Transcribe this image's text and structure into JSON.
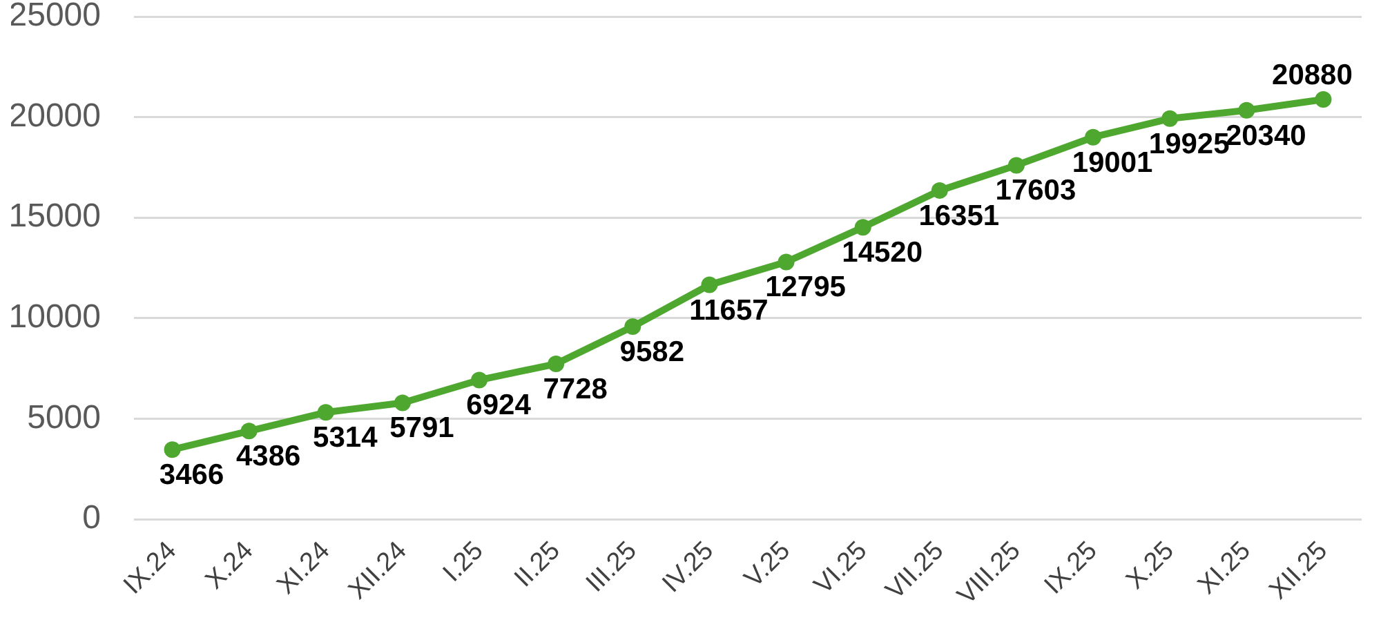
{
  "chart_data": {
    "type": "line",
    "categories": [
      "IX.24",
      "X.24",
      "XI.24",
      "XII.24",
      "I.25",
      "II.25",
      "III.25",
      "IV.25",
      "V.25",
      "VI.25",
      "VII.25",
      "VIII.25",
      "IX.25",
      "X.25",
      "XI.25",
      "XII.25"
    ],
    "series": [
      {
        "color": "#4ea72e",
        "values": [
          3466,
          4386,
          5314,
          5791,
          6924,
          7728,
          9582,
          11657,
          12795,
          14520,
          16351,
          17603,
          19001,
          19925,
          20340,
          20880
        ]
      }
    ],
    "ylim": [
      0,
      25000
    ],
    "yticks": [
      0,
      5000,
      10000,
      15000,
      20000,
      25000
    ],
    "grid": "y",
    "marker": "circle",
    "line_style": "solid",
    "data_labels": true
  }
}
